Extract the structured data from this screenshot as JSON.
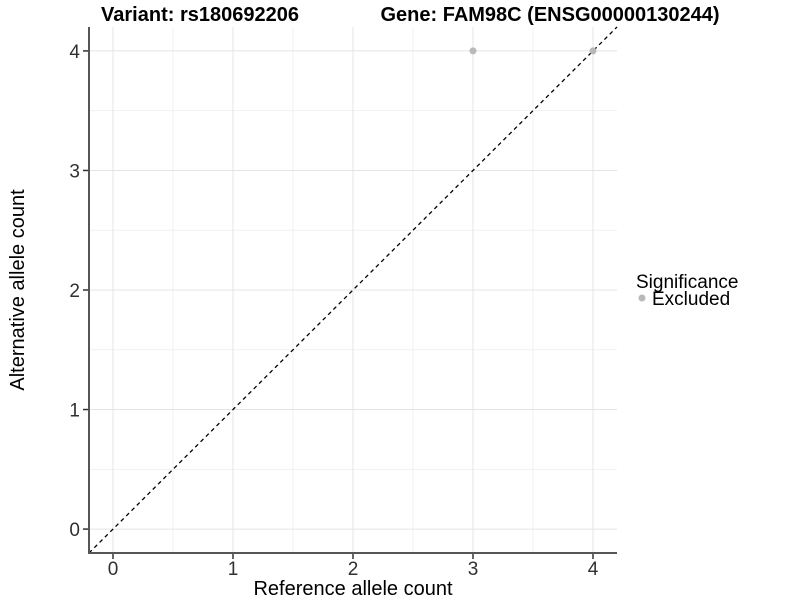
{
  "chart_data": {
    "type": "scatter",
    "titles": {
      "left": "Variant: rs180692206",
      "right": "Gene: FAM98C (ENSG00000130244)"
    },
    "xlabel": "Reference allele count",
    "ylabel": "Alternative allele count",
    "xlim": [
      -0.2,
      4.2
    ],
    "ylim": [
      -0.2,
      4.2
    ],
    "xticks": [
      0,
      1,
      2,
      3,
      4
    ],
    "yticks": [
      0,
      1,
      2,
      3,
      4
    ],
    "x_minor_gridlines": [
      0.5,
      1.5,
      2.5,
      3.5
    ],
    "y_minor_gridlines": [
      0.5,
      1.5,
      2.5,
      3.5
    ],
    "grid": "major and minor, light gray on white panel",
    "reference_line": {
      "type": "identity",
      "equation": "y = x",
      "linestyle": "dashed",
      "color": "#000000"
    },
    "series": [
      {
        "name": "Excluded",
        "marker": "circle",
        "color": "#b9b9b9",
        "points": [
          {
            "x": 3,
            "y": 4
          },
          {
            "x": 4,
            "y": 4
          }
        ]
      }
    ],
    "legend": {
      "title": "Significance",
      "position": "right",
      "items": [
        {
          "label": "Excluded",
          "marker": "circle",
          "color": "#b9b9b9"
        }
      ]
    }
  },
  "colors": {
    "background": "#ffffff",
    "grid_major": "#e4e4e4",
    "grid_minor": "#f1f1f1",
    "axis_line": "#565656",
    "tick_mark": "#333333",
    "tick_label": "#303030",
    "point": "#b9b9b9",
    "reference_line": "#000000",
    "text": "#000000"
  }
}
